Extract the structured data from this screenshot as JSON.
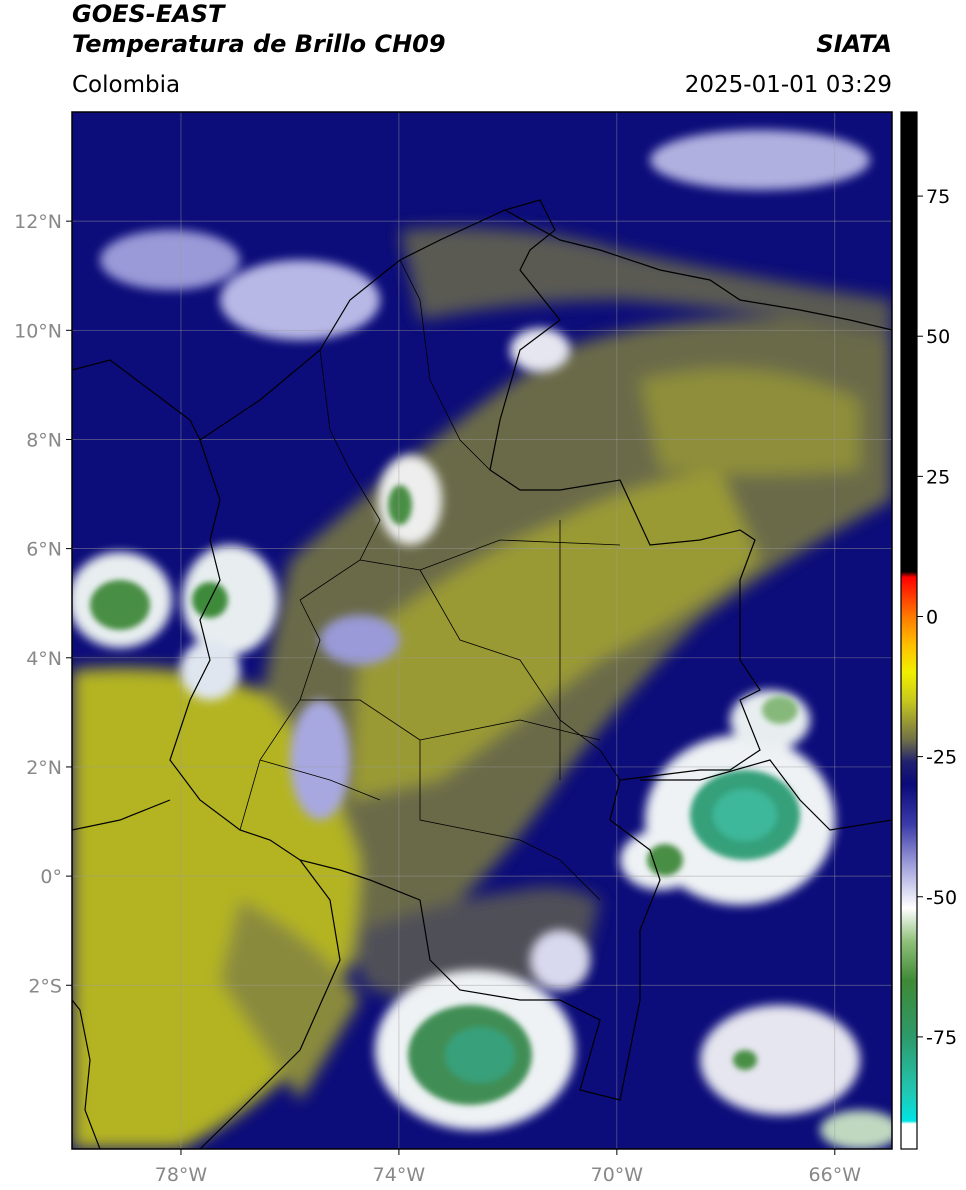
{
  "header": {
    "line1": "GOES-EAST",
    "line2": "Temperatura de Brillo CH09",
    "region": "Colombia",
    "agency": "SIATA",
    "datetime": "2025-01-01 03:29"
  },
  "map": {
    "extent": {
      "lon_min": -80.0,
      "lon_max": -64.95,
      "lat_min": -5.0,
      "lat_max": 14.0
    },
    "lat_ticks": [
      {
        "value": 12,
        "label": "12°N"
      },
      {
        "value": 10,
        "label": "10°N"
      },
      {
        "value": 8,
        "label": "8°N"
      },
      {
        "value": 6,
        "label": "6°N"
      },
      {
        "value": 4,
        "label": "4°N"
      },
      {
        "value": 2,
        "label": "2°N"
      },
      {
        "value": 0,
        "label": "0°"
      },
      {
        "value": -2,
        "label": "2°S"
      }
    ],
    "lon_ticks": [
      {
        "value": -78,
        "label": "78°W"
      },
      {
        "value": -74,
        "label": "74°W"
      },
      {
        "value": -70,
        "label": "70°W"
      },
      {
        "value": -66,
        "label": "66°W"
      }
    ],
    "colors": {
      "yellow": "#b4b423",
      "olive": "#6e6e45",
      "navy": "#0c0c7a",
      "white": "#f2f2f2",
      "green": "#3e8a3a",
      "teal": "#36b48a"
    }
  },
  "colorbar": {
    "range": [
      -95,
      90
    ],
    "ticks": [
      {
        "value": 75,
        "label": "75"
      },
      {
        "value": 50,
        "label": "50"
      },
      {
        "value": 25,
        "label": "25"
      },
      {
        "value": 0,
        "label": "0"
      },
      {
        "value": -25,
        "label": "-25"
      },
      {
        "value": -50,
        "label": "-50"
      },
      {
        "value": -75,
        "label": "-75"
      }
    ],
    "stops": [
      {
        "value": -95,
        "color": "#ffffff"
      },
      {
        "value": -90.5,
        "color": "#ffffff"
      },
      {
        "value": -90,
        "color": "#00e5e5"
      },
      {
        "value": -85,
        "color": "#20c8b4"
      },
      {
        "value": -75,
        "color": "#2e9a6a"
      },
      {
        "value": -65,
        "color": "#3e8a35"
      },
      {
        "value": -58,
        "color": "#8fc07a"
      },
      {
        "value": -52,
        "color": "#ffffff"
      },
      {
        "value": -45,
        "color": "#a8a8e0"
      },
      {
        "value": -37,
        "color": "#3a3aa8"
      },
      {
        "value": -30,
        "color": "#0a0a78"
      },
      {
        "value": -26,
        "color": "#202070"
      },
      {
        "value": -22,
        "color": "#707048"
      },
      {
        "value": -15,
        "color": "#c8c81e"
      },
      {
        "value": -10,
        "color": "#f0f000"
      },
      {
        "value": -5,
        "color": "#ffbe00"
      },
      {
        "value": 0,
        "color": "#ff7a00"
      },
      {
        "value": 7,
        "color": "#ff0000"
      },
      {
        "value": 8,
        "color": "#000000"
      },
      {
        "value": 90,
        "color": "#000000"
      }
    ]
  }
}
